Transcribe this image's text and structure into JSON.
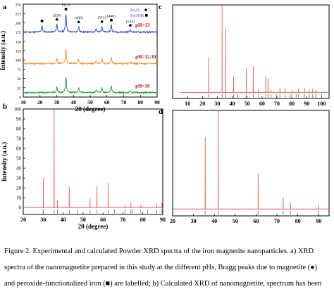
{
  "caption": {
    "lines": [
      "Figure 2. Experimental and calculated Powder XRD spectra of the iron magnetite nanoparticles. a) XRD",
      "spectra of the nanomagnetite prepared in this study at the different pHs, Bragg peaks due to magnetite (●)",
      "and peroxide-functionalized iron (■) are labelled; b) Calculated XRD of nanomagnetite, spectrum has been"
    ]
  },
  "chart_data": [
    {
      "panel": "a",
      "type": "line",
      "xlabel": "2θ (degree)",
      "ylabel": "Intensity (a.u.)",
      "xlim": [
        10,
        90
      ],
      "xticks": [
        10,
        20,
        30,
        40,
        50,
        60,
        70,
        80,
        90
      ],
      "yticks": [
        0,
        25,
        50,
        75,
        100,
        125,
        150,
        175,
        200,
        225,
        250
      ],
      "ylim": [
        0,
        250
      ],
      "legend": {
        "position": "top-right",
        "entries": [
          {
            "label": "Fe₃O₄",
            "marker": "circle"
          },
          {
            "label": "FeOOH",
            "marker": "square"
          }
        ]
      },
      "peak_labels": [
        {
          "label": "(220)",
          "x": 30.1
        },
        {
          "label": "(311)",
          "x": 35.5
        },
        {
          "label": "(400)",
          "x": 43.1
        },
        {
          "label": "(511)",
          "x": 57.0
        },
        {
          "label": "(440)",
          "x": 62.6
        },
        {
          "label": "(533)",
          "x": 74.0
        }
      ],
      "series": [
        {
          "name": "pH=13",
          "color": "#1f3fd6",
          "baseline": 175,
          "peaks": [
            [
              21.2,
              18
            ],
            [
              30.1,
              22
            ],
            [
              35.5,
              50
            ],
            [
              43.1,
              15
            ],
            [
              53.5,
              9
            ],
            [
              57.0,
              16
            ],
            [
              62.6,
              20
            ],
            [
              74.0,
              6
            ]
          ]
        },
        {
          "name": "pH=12.30",
          "color": "#f08a24",
          "baseline": 90,
          "peaks": [
            [
              30.1,
              15
            ],
            [
              35.5,
              40
            ],
            [
              43.1,
              12
            ],
            [
              53.5,
              7
            ],
            [
              57.0,
              13
            ],
            [
              62.6,
              17
            ],
            [
              74.0,
              5
            ]
          ]
        },
        {
          "name": "pH=10",
          "color": "#1a9a2a",
          "baseline": 12,
          "peaks": [
            [
              30.1,
              16
            ],
            [
              35.5,
              44
            ],
            [
              43.1,
              13
            ],
            [
              53.5,
              7
            ],
            [
              57.0,
              14
            ],
            [
              62.6,
              19
            ],
            [
              74.0,
              5
            ]
          ]
        }
      ]
    },
    {
      "panel": "b",
      "type": "line",
      "xlabel": "2θ (degree)",
      "ylabel": "Intensity (a.u.)",
      "xlim": [
        20,
        90
      ],
      "xticks": [
        20,
        30,
        40,
        50,
        60,
        70,
        80,
        90
      ],
      "yticks": [
        0,
        10,
        20,
        30,
        40,
        50,
        60,
        70,
        80,
        90,
        100
      ],
      "ylim": [
        -7,
        100
      ],
      "series_color": "#e84b4b",
      "peaks": [
        [
          30.1,
          30
        ],
        [
          35.5,
          100
        ],
        [
          37.1,
          8
        ],
        [
          43.1,
          21
        ],
        [
          53.5,
          10
        ],
        [
          57.0,
          22
        ],
        [
          62.6,
          25
        ],
        [
          71.0,
          3
        ],
        [
          74.0,
          5
        ],
        [
          79.0,
          3
        ],
        [
          87.0,
          4
        ],
        [
          89.6,
          5
        ]
      ],
      "reflection_ticks": [
        30.1,
        35.5,
        37.1,
        43.1,
        47.2,
        53.5,
        57.0,
        62.6,
        65.8,
        71.0,
        74.0,
        75.0,
        79.0,
        82.4,
        87.0,
        89.6
      ]
    },
    {
      "panel": "c",
      "type": "line",
      "xlabel": "",
      "ylabel": "",
      "xlim": [
        0,
        105
      ],
      "xticks": [
        10,
        20,
        30,
        40,
        50,
        60,
        70,
        80,
        90,
        100
      ],
      "ylim": [
        -7,
        100
      ],
      "series_color": "#e84b4b",
      "peaks": [
        [
          24.1,
          40
        ],
        [
          33.2,
          100
        ],
        [
          35.6,
          73
        ],
        [
          40.9,
          18
        ],
        [
          49.5,
          28
        ],
        [
          54.1,
          30
        ],
        [
          57.6,
          4
        ],
        [
          62.5,
          18
        ],
        [
          64.0,
          16
        ],
        [
          66.0,
          3
        ],
        [
          72.0,
          5
        ],
        [
          75.5,
          5
        ],
        [
          80.0,
          3
        ],
        [
          84.5,
          4
        ],
        [
          88.5,
          5
        ],
        [
          91.5,
          3
        ],
        [
          94.0,
          4
        ],
        [
          96.0,
          3
        ]
      ],
      "reflection_ticks": [
        24.1,
        33.2,
        35.6,
        40.9,
        43.5,
        49.5,
        54.1,
        57.6,
        62.5,
        64.0,
        66.0,
        69.6,
        72.0,
        75.5,
        78.8,
        80.0,
        82.9,
        84.5,
        88.5,
        91.5,
        94.0,
        96.0,
        100.0
      ]
    },
    {
      "panel": "d",
      "type": "line",
      "xlabel": "",
      "ylabel": "",
      "xlim": [
        20,
        95
      ],
      "xticks": [
        20,
        30,
        40,
        50,
        60,
        70,
        80,
        90
      ],
      "ylim": [
        -7,
        100
      ],
      "series_color": "#e84b4b",
      "peaks": [
        [
          35.6,
          73
        ],
        [
          41.9,
          100
        ],
        [
          61.0,
          36
        ],
        [
          73.0,
          12
        ],
        [
          76.5,
          7
        ],
        [
          90.0,
          4
        ]
      ],
      "reflection_ticks": [
        35.6,
        41.9,
        61.0,
        73.0,
        76.5,
        90.0
      ]
    }
  ]
}
